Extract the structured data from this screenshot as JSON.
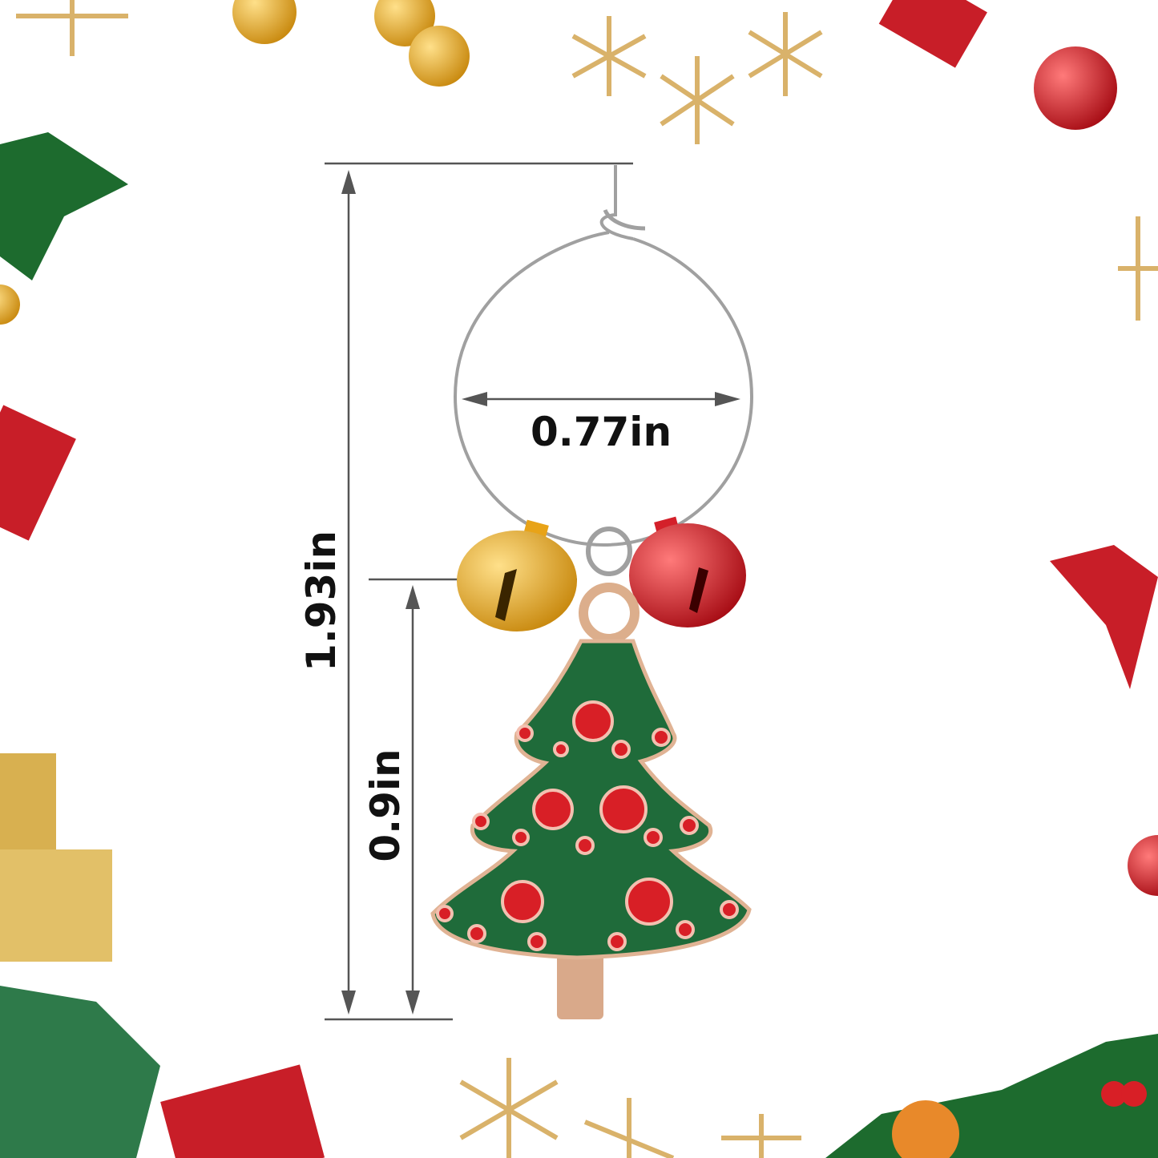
{
  "dimensions": {
    "ring_width": "0.77in",
    "total_height": "1.93in",
    "pendant_height": "0.9in"
  },
  "colors": {
    "dimension_line": "#555555",
    "ring": "#9a9a9a",
    "tree_green": "#1f6b3a",
    "ornament_red": "#d81f26",
    "bell_gold": "#e8a318",
    "bell_red": "#d4202a",
    "trunk": "#d9a98a"
  }
}
